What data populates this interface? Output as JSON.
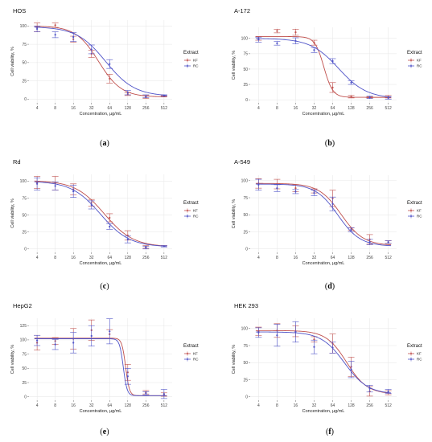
{
  "figure": {
    "legend_title": "Extract",
    "x_label": "Concentration, µg/mL",
    "y_label": "Cell viability, %"
  },
  "colors": {
    "KF": "#c0504d",
    "RC": "#4f53c8"
  },
  "chart_data": [
    {
      "type": "line",
      "title": "HOS",
      "caption": "(a)",
      "xlabel": "Concentration, µg/mL",
      "ylabel": "Cell viability, %",
      "x_scale": "log2",
      "x": [
        4,
        8,
        16,
        32,
        64,
        128,
        256,
        512
      ],
      "y_ticks": [
        0,
        25,
        50,
        75,
        100
      ],
      "ylim": [
        -5,
        108
      ],
      "legend": {
        "title": "Extract",
        "position": "right"
      },
      "grid": true,
      "series": [
        {
          "name": "KF",
          "values": [
            98,
            101,
            82,
            62,
            28,
            7,
            3,
            4
          ],
          "errors": [
            6,
            3,
            4,
            5,
            6,
            2,
            2,
            1
          ],
          "curve": {
            "top": 100,
            "bottom": 3,
            "ec50": 42,
            "slope": 2.3
          }
        },
        {
          "name": "RC",
          "values": [
            96,
            88,
            85,
            68,
            48,
            9,
            4,
            5
          ],
          "errors": [
            4,
            4,
            6,
            6,
            6,
            3,
            2,
            1
          ],
          "curve": {
            "top": 99,
            "bottom": 4,
            "ec50": 55,
            "slope": 1.8
          }
        }
      ]
    },
    {
      "type": "line",
      "title": "A-172",
      "caption": "(b)",
      "xlabel": "Concentration, µg/mL",
      "ylabel": "Cell viability, %",
      "x_scale": "log2",
      "x": [
        4,
        8,
        16,
        32,
        64,
        128,
        256,
        512
      ],
      "y_ticks": [
        0,
        25,
        50,
        75,
        100
      ],
      "ylim": [
        -5,
        118
      ],
      "legend": {
        "title": "Extract",
        "position": "right"
      },
      "grid": true,
      "series": [
        {
          "name": "KF",
          "values": [
            100,
            112,
            110,
            93,
            20,
            5,
            4,
            5
          ],
          "errors": [
            3,
            3,
            5,
            4,
            8,
            2,
            1,
            2
          ],
          "curve": {
            "top": 103,
            "bottom": 4,
            "ec50": 46,
            "slope": 6
          }
        },
        {
          "name": "RC",
          "values": [
            98,
            92,
            96,
            81,
            63,
            28,
            4,
            3
          ],
          "errors": [
            4,
            3,
            5,
            4,
            4,
            3,
            2,
            2
          ],
          "curve": {
            "top": 100,
            "bottom": 2,
            "ec50": 80,
            "slope": 1.9
          }
        }
      ]
    },
    {
      "type": "line",
      "title": "Rd",
      "caption": "(c)",
      "xlabel": "Concentration, µg/mL",
      "ylabel": "Cell viability, %",
      "x_scale": "log2",
      "x": [
        4,
        8,
        16,
        32,
        64,
        128,
        256,
        512
      ],
      "y_ticks": [
        0,
        25,
        50,
        75,
        100
      ],
      "ylim": [
        -5,
        110
      ],
      "legend": {
        "title": "Extract",
        "position": "right"
      },
      "grid": true,
      "series": [
        {
          "name": "KF",
          "values": [
            98,
            97,
            88,
            68,
            46,
            20,
            3,
            4
          ],
          "errors": [
            9,
            10,
            8,
            5,
            6,
            7,
            2,
            1
          ],
          "curve": {
            "top": 101,
            "bottom": 3,
            "ec50": 52,
            "slope": 1.8
          }
        },
        {
          "name": "RC",
          "values": [
            96,
            93,
            85,
            65,
            33,
            14,
            2,
            4
          ],
          "errors": [
            9,
            6,
            9,
            6,
            4,
            5,
            2,
            1
          ],
          "curve": {
            "top": 100,
            "bottom": 3,
            "ec50": 45,
            "slope": 1.8
          }
        }
      ]
    },
    {
      "type": "line",
      "title": "A-549",
      "caption": "(d)",
      "xlabel": "Concentration, µg/mL",
      "ylabel": "Cell viability, %",
      "x_scale": "log2",
      "x": [
        4,
        8,
        16,
        32,
        64,
        128,
        256,
        512
      ],
      "y_ticks": [
        0,
        25,
        50,
        75,
        100
      ],
      "ylim": [
        -5,
        108
      ],
      "legend": {
        "title": "Extract",
        "position": "right"
      },
      "grid": true,
      "series": [
        {
          "name": "KF",
          "values": [
            96,
            95,
            89,
            85,
            74,
            29,
            14,
            10
          ],
          "errors": [
            7,
            7,
            5,
            3,
            12,
            2,
            7,
            2
          ],
          "curve": {
            "top": 96,
            "bottom": 5,
            "ec50": 88,
            "slope": 2.4
          }
        },
        {
          "name": "RC",
          "values": [
            94,
            89,
            84,
            82,
            66,
            28,
            10,
            10
          ],
          "errors": [
            8,
            5,
            3,
            4,
            10,
            3,
            4,
            2
          ],
          "curve": {
            "top": 95,
            "bottom": 4,
            "ec50": 78,
            "slope": 2.4
          }
        }
      ]
    },
    {
      "type": "line",
      "title": "HepG2",
      "caption": "(e)",
      "xlabel": "Concentration, µg/mL",
      "ylabel": "Cell viability, %",
      "x_scale": "log2",
      "x": [
        4,
        8,
        16,
        32,
        64,
        128,
        256,
        512
      ],
      "y_ticks": [
        0,
        25,
        50,
        75,
        100,
        125
      ],
      "ylim": [
        -6,
        138
      ],
      "legend": {
        "title": "Extract",
        "position": "right"
      },
      "grid": true,
      "series": [
        {
          "name": "KF",
          "values": [
            95,
            98,
            102,
            117,
            110,
            43,
            8,
            4
          ],
          "errors": [
            13,
            6,
            18,
            18,
            8,
            14,
            3,
            3
          ],
          "curve": {
            "top": 103,
            "bottom": 2,
            "ec50": 118,
            "slope": 14
          }
        },
        {
          "name": "RC",
          "values": [
            99,
            92,
            95,
            107,
            115,
            36,
            6,
            5
          ],
          "errors": [
            9,
            9,
            18,
            18,
            22,
            14,
            3,
            8
          ],
          "curve": {
            "top": 102,
            "bottom": 2,
            "ec50": 108,
            "slope": 14
          }
        }
      ]
    },
    {
      "type": "line",
      "title": "HEK 293",
      "caption": "(f)",
      "xlabel": "Concentration, µg/mL",
      "ylabel": "Cell viability, %",
      "x_scale": "log2",
      "x": [
        4,
        8,
        16,
        32,
        64,
        128,
        256,
        512
      ],
      "y_ticks": [
        0,
        25,
        50,
        75,
        100
      ],
      "ylim": [
        -5,
        115
      ],
      "legend": {
        "title": "Extract",
        "position": "right"
      },
      "grid": true,
      "series": [
        {
          "name": "KF",
          "values": [
            96,
            97,
            96,
            84,
            78,
            44,
            8,
            6
          ],
          "errors": [
            6,
            10,
            8,
            4,
            14,
            14,
            7,
            3
          ],
          "curve": {
            "top": 97,
            "bottom": 4,
            "ec50": 108,
            "slope": 2.6
          }
        },
        {
          "name": "RC",
          "values": [
            94,
            90,
            95,
            73,
            72,
            40,
            12,
            8
          ],
          "errors": [
            7,
            16,
            15,
            10,
            8,
            12,
            5,
            3
          ],
          "curve": {
            "top": 95,
            "bottom": 4,
            "ec50": 100,
            "slope": 2.3
          }
        }
      ]
    }
  ]
}
